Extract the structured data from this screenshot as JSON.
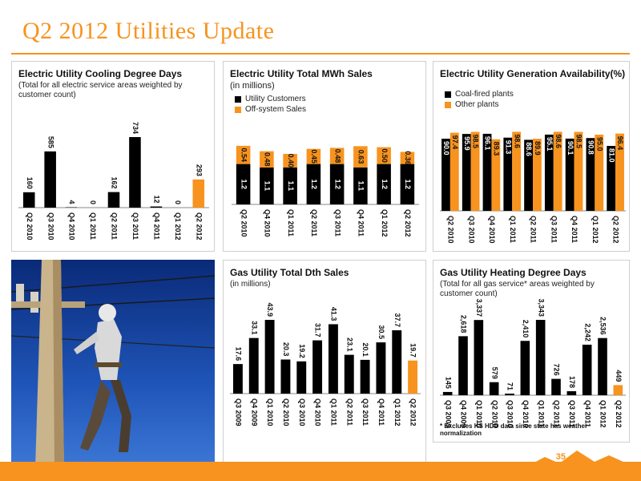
{
  "slide": {
    "title": "Q2 2012 Utilities Update",
    "page_number": "35"
  },
  "colors": {
    "orange": "#f7931e",
    "black": "#000000"
  },
  "chart_data": [
    {
      "id": "cdd",
      "type": "bar",
      "title": "Electric Utility Cooling Degree Days",
      "subtitle": "(Total for all electric service areas weighted by customer count)",
      "categories": [
        "Q2 2010",
        "Q3 2010",
        "Q4 2010",
        "Q1 2011",
        "Q2 2011",
        "Q3 2011",
        "Q4 2011",
        "Q1 2012",
        "Q2 2012"
      ],
      "values": [
        160,
        585,
        4,
        0,
        162,
        734,
        12,
        0,
        293
      ],
      "labels": [
        "160",
        "585",
        "4",
        "0",
        "162",
        "734",
        "12",
        "0",
        "293"
      ],
      "highlight_last": true
    },
    {
      "id": "mwh",
      "type": "stacked-bar",
      "title": "Electric Utility Total MWh Sales",
      "subtitle": "(in millions)",
      "categories": [
        "Q2 2010",
        "Q4 2010",
        "Q1 2011",
        "Q2 2011",
        "Q3 2011",
        "Q4 2011",
        "Q1 2012",
        "Q2 2012"
      ],
      "series": [
        {
          "name": "Utility Customers",
          "values": [
            1.2,
            1.1,
            1.1,
            1.2,
            1.2,
            1.1,
            1.2,
            1.2
          ],
          "labels": [
            "1.2",
            "1.1",
            "1.1",
            "1.2",
            "1.2",
            "1.1",
            "1.2",
            "1.2"
          ],
          "color": "#000000"
        },
        {
          "name": "Off-system Sales",
          "values": [
            0.54,
            0.48,
            0.4,
            0.45,
            0.48,
            0.63,
            0.5,
            0.36
          ],
          "labels": [
            "0.54",
            "0.48",
            "0.40",
            "0.45",
            "0.48",
            "0.63",
            "0.50",
            "0.36"
          ],
          "color": "#f7931e"
        }
      ]
    },
    {
      "id": "gen",
      "type": "bar",
      "title": "Electric Utility Generation Availability(%)",
      "categories": [
        "Q2 2010",
        "Q3 2010",
        "Q4 2010",
        "Q1 2011",
        "Q2 2011",
        "Q3 2011",
        "Q4 2011",
        "Q1 2012",
        "Q2 2012"
      ],
      "series": [
        {
          "name": "Coal-fired plants",
          "values": [
            90.0,
            95.9,
            96.1,
            91.3,
            88.6,
            95.1,
            90.1,
            90.8,
            81.0
          ],
          "labels": [
            "90.0",
            "95.9",
            "96.1",
            "91.3",
            "88.6",
            "95.1",
            "90.1",
            "90.8",
            "81.0"
          ],
          "color": "#000000"
        },
        {
          "name": "Other plants",
          "values": [
            97.4,
            98.5,
            89.3,
            98.6,
            89.9,
            98.6,
            98.5,
            95.0,
            96.4
          ],
          "labels": [
            "97.4",
            "98.5",
            "89.3",
            "98.6",
            "89.9",
            "98.6",
            "98.5",
            "95.0",
            "96.4"
          ],
          "color": "#f7931e"
        }
      ]
    },
    {
      "id": "dth",
      "type": "bar",
      "title": "Gas Utility Total Dth Sales",
      "subtitle": "(in millions)",
      "categories": [
        "Q3 2009",
        "Q4 2009",
        "Q1 2010",
        "Q2 2010",
        "Q3 2010",
        "Q4 2010",
        "Q1 2011",
        "Q2 2011",
        "Q3 2011",
        "Q4 2011",
        "Q1 2012",
        "Q2 2012"
      ],
      "values": [
        17.6,
        33.1,
        43.9,
        20.3,
        19.2,
        31.7,
        41.3,
        23.1,
        20.1,
        30.5,
        37.7,
        19.7
      ],
      "labels": [
        "17.6",
        "33.1",
        "43.9",
        "20.3",
        "19.2",
        "31.7",
        "41.3",
        "23.1",
        "20.1",
        "30.5",
        "37.7",
        "19.7"
      ],
      "highlight_last": true
    },
    {
      "id": "hdd",
      "type": "bar",
      "title": "Gas Utility Heating Degree Days",
      "subtitle": "(Total for all gas service* areas weighted by customer count)",
      "categories": [
        "Q3 2009",
        "Q4 2009",
        "Q1 2010",
        "Q2 2010",
        "Q3 2010",
        "Q4 2010",
        "Q1 2011",
        "Q2 2011",
        "Q3 2011",
        "Q4 2011",
        "Q1 2012",
        "Q2 2012"
      ],
      "values": [
        145,
        2618,
        3337,
        579,
        71,
        2410,
        3343,
        726,
        178,
        2242,
        2536,
        449
      ],
      "labels": [
        "145",
        "2,618",
        "3,337",
        "579",
        "71",
        "2,410",
        "3,343",
        "726",
        "178",
        "2,242",
        "2,536",
        "449"
      ],
      "highlight_last": true,
      "footnote": "* Excludes KS HDD data since state has weather normalization"
    }
  ]
}
